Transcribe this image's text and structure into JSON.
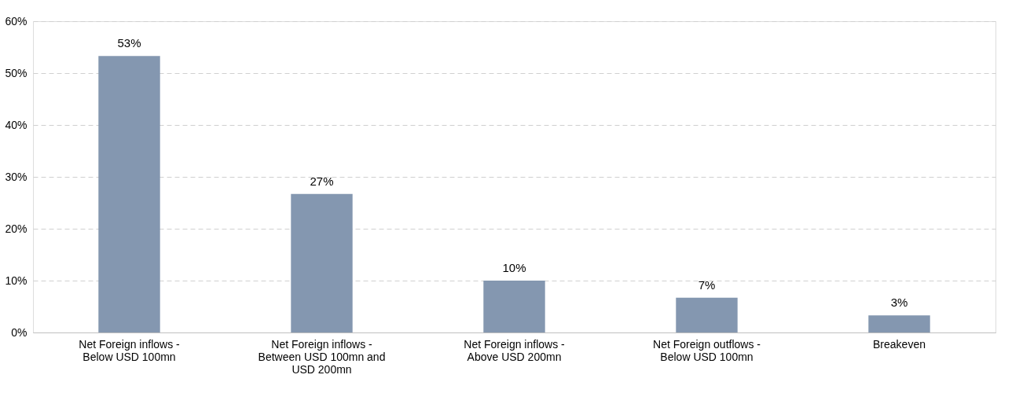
{
  "chart_data": {
    "type": "bar",
    "categories": [
      "Net Foreign inflows - Below USD 100mn",
      "Net Foreign inflows - Between USD 100mn and USD 200mn",
      "Net Foreign inflows - Above USD 200mn",
      "Net Foreign outflows - Below USD 100mn",
      "Breakeven"
    ],
    "values": [
      53.3,
      26.7,
      10,
      6.7,
      3.3
    ],
    "value_labels": [
      "53%",
      "27%",
      "10%",
      "7%",
      "3%"
    ],
    "color": "#8497b0",
    "ylim": [
      0,
      60
    ],
    "yticks": [
      {
        "value": 0,
        "label": "0%"
      },
      {
        "value": 10,
        "label": "10%"
      },
      {
        "value": 20,
        "label": "20%"
      },
      {
        "value": 30,
        "label": "30%"
      },
      {
        "value": 40,
        "label": "40%"
      },
      {
        "value": 50,
        "label": "50%"
      },
      {
        "value": 60,
        "label": "60%"
      }
    ],
    "grid": "y"
  }
}
